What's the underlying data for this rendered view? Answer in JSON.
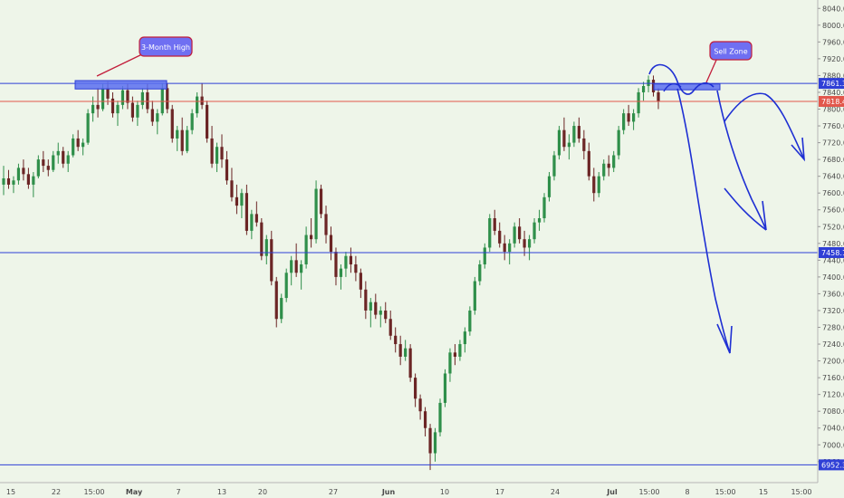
{
  "chart_data": {
    "type": "candlestick",
    "y_axis": {
      "position": "right",
      "ylim": [
        6910,
        8060
      ],
      "ticks": [
        6960,
        7000,
        7040,
        7080,
        7120,
        7160,
        7200,
        7240,
        7280,
        7320,
        7360,
        7400,
        7440,
        7480,
        7520,
        7560,
        7600,
        7640,
        7680,
        7720,
        7760,
        7800,
        7840,
        7880,
        7920,
        7960,
        8000,
        8040
      ],
      "tick_labels": [
        "6960.0",
        "7000.0",
        "7040.0",
        "7080.0",
        "7120.0",
        "7160.0",
        "7200.0",
        "7240.0",
        "7280.0",
        "7320.0",
        "7360.0",
        "7400.0",
        "7440.0",
        "7480.0",
        "7520.0",
        "7560.0",
        "7600.0",
        "7640.0",
        "7680.0",
        "7720.0",
        "7760.0",
        "7800.0",
        "7840.0",
        "7880.0",
        "7920.0",
        "7960.0",
        "8000.0",
        "8040.0"
      ]
    },
    "x_axis": {
      "ticks": [
        "15",
        "22",
        "15:00",
        "May",
        "7",
        "13",
        "20",
        "27",
        "Jun",
        "10",
        "17",
        "24",
        "Jul",
        "15:00",
        "8",
        "15:00",
        "15",
        "15:00"
      ],
      "bold_ticks": [
        "May",
        "Jun",
        "Jul"
      ]
    },
    "horizontal_lines": [
      {
        "value": 7861.3,
        "label": "7861.3",
        "color": "#2f3fd6"
      },
      {
        "value": 7818.4,
        "label": "7818.4",
        "color": "#e2574c"
      },
      {
        "value": 7458.1,
        "label": "7458.1",
        "color": "#2f3fd6"
      },
      {
        "value": 6952.3,
        "label": "6952.3",
        "color": "#2f3fd6"
      }
    ],
    "zones": [
      {
        "from": 7848,
        "to": 7868,
        "color": "#5b6ef0"
      },
      {
        "from": 7846,
        "to": 7860,
        "color": "#5b6ef0"
      }
    ],
    "callouts": [
      {
        "text": "3-Month High",
        "color": "#6f6ff2",
        "border": "#c21d3a"
      },
      {
        "text": "Sell Zone",
        "color": "#6f6ff2",
        "border": "#c21d3a"
      }
    ],
    "candles": [
      [
        7620,
        7665,
        7595,
        7635
      ],
      [
        7635,
        7655,
        7610,
        7620
      ],
      [
        7620,
        7640,
        7600,
        7630
      ],
      [
        7630,
        7670,
        7620,
        7660
      ],
      [
        7660,
        7680,
        7630,
        7645
      ],
      [
        7645,
        7660,
        7610,
        7620
      ],
      [
        7620,
        7650,
        7590,
        7640
      ],
      [
        7640,
        7690,
        7635,
        7680
      ],
      [
        7680,
        7700,
        7650,
        7665
      ],
      [
        7665,
        7680,
        7640,
        7655
      ],
      [
        7655,
        7700,
        7650,
        7690
      ],
      [
        7690,
        7720,
        7670,
        7700
      ],
      [
        7700,
        7710,
        7660,
        7670
      ],
      [
        7670,
        7700,
        7650,
        7690
      ],
      [
        7690,
        7740,
        7685,
        7730
      ],
      [
        7730,
        7750,
        7700,
        7710
      ],
      [
        7710,
        7730,
        7690,
        7720
      ],
      [
        7720,
        7800,
        7715,
        7790
      ],
      [
        7790,
        7830,
        7770,
        7810
      ],
      [
        7810,
        7850,
        7780,
        7800
      ],
      [
        7800,
        7860,
        7795,
        7850
      ],
      [
        7850,
        7865,
        7810,
        7825
      ],
      [
        7825,
        7840,
        7780,
        7790
      ],
      [
        7790,
        7820,
        7760,
        7810
      ],
      [
        7810,
        7855,
        7800,
        7845
      ],
      [
        7845,
        7860,
        7800,
        7815
      ],
      [
        7815,
        7830,
        7770,
        7780
      ],
      [
        7780,
        7820,
        7760,
        7810
      ],
      [
        7810,
        7850,
        7800,
        7840
      ],
      [
        7840,
        7860,
        7790,
        7800
      ],
      [
        7800,
        7820,
        7760,
        7770
      ],
      [
        7770,
        7800,
        7740,
        7790
      ],
      [
        7790,
        7862,
        7785,
        7850
      ],
      [
        7850,
        7862,
        7790,
        7800
      ],
      [
        7800,
        7810,
        7720,
        7730
      ],
      [
        7730,
        7760,
        7700,
        7750
      ],
      [
        7750,
        7780,
        7690,
        7700
      ],
      [
        7700,
        7760,
        7695,
        7750
      ],
      [
        7750,
        7800,
        7740,
        7790
      ],
      [
        7790,
        7840,
        7780,
        7830
      ],
      [
        7830,
        7862,
        7800,
        7810
      ],
      [
        7810,
        7820,
        7720,
        7730
      ],
      [
        7730,
        7760,
        7660,
        7670
      ],
      [
        7670,
        7720,
        7650,
        7710
      ],
      [
        7710,
        7740,
        7660,
        7680
      ],
      [
        7680,
        7700,
        7620,
        7630
      ],
      [
        7630,
        7660,
        7580,
        7590
      ],
      [
        7590,
        7620,
        7550,
        7570
      ],
      [
        7570,
        7610,
        7540,
        7600
      ],
      [
        7600,
        7620,
        7500,
        7510
      ],
      [
        7510,
        7560,
        7490,
        7550
      ],
      [
        7550,
        7580,
        7520,
        7530
      ],
      [
        7530,
        7540,
        7440,
        7450
      ],
      [
        7450,
        7500,
        7430,
        7490
      ],
      [
        7490,
        7510,
        7380,
        7390
      ],
      [
        7390,
        7400,
        7280,
        7300
      ],
      [
        7300,
        7360,
        7290,
        7350
      ],
      [
        7350,
        7420,
        7340,
        7410
      ],
      [
        7410,
        7450,
        7380,
        7440
      ],
      [
        7440,
        7480,
        7400,
        7410
      ],
      [
        7410,
        7440,
        7370,
        7430
      ],
      [
        7430,
        7520,
        7420,
        7500
      ],
      [
        7500,
        7540,
        7470,
        7490
      ],
      [
        7490,
        7630,
        7480,
        7610
      ],
      [
        7610,
        7620,
        7540,
        7550
      ],
      [
        7550,
        7570,
        7480,
        7500
      ],
      [
        7500,
        7520,
        7440,
        7460
      ],
      [
        7460,
        7470,
        7380,
        7400
      ],
      [
        7400,
        7430,
        7370,
        7420
      ],
      [
        7420,
        7460,
        7400,
        7450
      ],
      [
        7450,
        7470,
        7410,
        7430
      ],
      [
        7430,
        7450,
        7390,
        7410
      ],
      [
        7410,
        7420,
        7350,
        7370
      ],
      [
        7370,
        7390,
        7300,
        7320
      ],
      [
        7320,
        7350,
        7280,
        7340
      ],
      [
        7340,
        7360,
        7300,
        7310
      ],
      [
        7310,
        7330,
        7280,
        7320
      ],
      [
        7320,
        7340,
        7290,
        7300
      ],
      [
        7300,
        7320,
        7250,
        7260
      ],
      [
        7260,
        7280,
        7220,
        7240
      ],
      [
        7240,
        7260,
        7190,
        7210
      ],
      [
        7210,
        7250,
        7200,
        7230
      ],
      [
        7230,
        7240,
        7150,
        7160
      ],
      [
        7160,
        7170,
        7090,
        7110
      ],
      [
        7110,
        7120,
        7060,
        7080
      ],
      [
        7080,
        7090,
        7020,
        7040
      ],
      [
        7040,
        7050,
        6940,
        6980
      ],
      [
        6980,
        7040,
        6960,
        7030
      ],
      [
        7030,
        7110,
        7020,
        7100
      ],
      [
        7100,
        7180,
        7090,
        7170
      ],
      [
        7170,
        7230,
        7150,
        7220
      ],
      [
        7220,
        7240,
        7190,
        7210
      ],
      [
        7210,
        7250,
        7200,
        7240
      ],
      [
        7240,
        7280,
        7220,
        7270
      ],
      [
        7270,
        7330,
        7260,
        7320
      ],
      [
        7320,
        7400,
        7310,
        7390
      ],
      [
        7390,
        7440,
        7380,
        7430
      ],
      [
        7430,
        7480,
        7420,
        7470
      ],
      [
        7470,
        7550,
        7460,
        7540
      ],
      [
        7540,
        7560,
        7500,
        7510
      ],
      [
        7510,
        7530,
        7470,
        7480
      ],
      [
        7480,
        7500,
        7440,
        7460
      ],
      [
        7460,
        7490,
        7430,
        7480
      ],
      [
        7480,
        7530,
        7470,
        7520
      ],
      [
        7520,
        7540,
        7480,
        7490
      ],
      [
        7490,
        7510,
        7450,
        7470
      ],
      [
        7470,
        7500,
        7440,
        7490
      ],
      [
        7490,
        7540,
        7480,
        7530
      ],
      [
        7530,
        7560,
        7510,
        7540
      ],
      [
        7540,
        7600,
        7530,
        7590
      ],
      [
        7590,
        7650,
        7580,
        7640
      ],
      [
        7640,
        7700,
        7630,
        7690
      ],
      [
        7690,
        7760,
        7680,
        7750
      ],
      [
        7750,
        7780,
        7700,
        7710
      ],
      [
        7710,
        7740,
        7680,
        7720
      ],
      [
        7720,
        7770,
        7710,
        7760
      ],
      [
        7760,
        7780,
        7720,
        7730
      ],
      [
        7730,
        7750,
        7680,
        7700
      ],
      [
        7700,
        7720,
        7630,
        7640
      ],
      [
        7640,
        7660,
        7580,
        7600
      ],
      [
        7600,
        7650,
        7590,
        7640
      ],
      [
        7640,
        7680,
        7630,
        7670
      ],
      [
        7670,
        7690,
        7640,
        7660
      ],
      [
        7660,
        7700,
        7650,
        7690
      ],
      [
        7690,
        7760,
        7680,
        7750
      ],
      [
        7750,
        7800,
        7740,
        7790
      ],
      [
        7790,
        7810,
        7760,
        7770
      ],
      [
        7770,
        7800,
        7750,
        7790
      ],
      [
        7790,
        7850,
        7780,
        7840
      ],
      [
        7840,
        7865,
        7820,
        7855
      ],
      [
        7855,
        7880,
        7840,
        7870
      ],
      [
        7870,
        7880,
        7830,
        7840
      ],
      [
        7840,
        7850,
        7800,
        7818
      ]
    ]
  }
}
